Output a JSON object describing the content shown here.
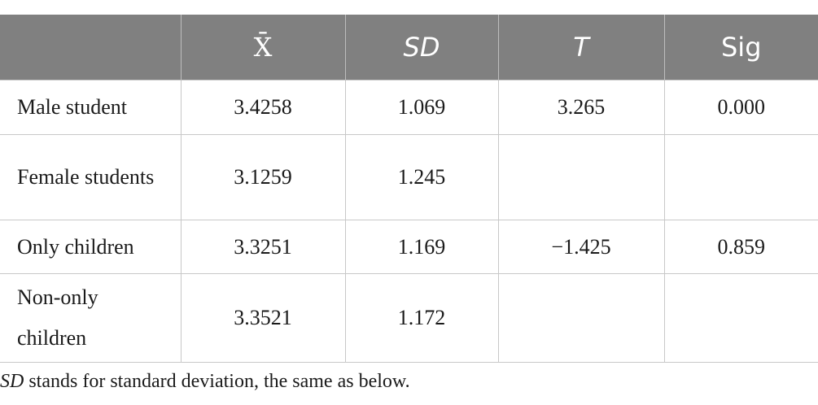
{
  "table": {
    "header": [
      "X̄",
      "SD",
      "T",
      "Sig"
    ],
    "rows": [
      {
        "label": "Male student",
        "mean": "3.4258",
        "sd": "1.069",
        "t": "3.265",
        "sig": "0.000"
      },
      {
        "label": "Female students",
        "mean": "3.1259",
        "sd": "1.245"
      },
      {
        "label": "Only children",
        "mean": "3.3251",
        "sd": "1.169",
        "t": "−1.425",
        "sig": "0.859"
      },
      {
        "label": "Non-only children",
        "mean": "3.3521",
        "sd": "1.172"
      }
    ]
  },
  "note": {
    "abbr": "SD",
    "text": "stands for standard deviation, the same as below."
  }
}
